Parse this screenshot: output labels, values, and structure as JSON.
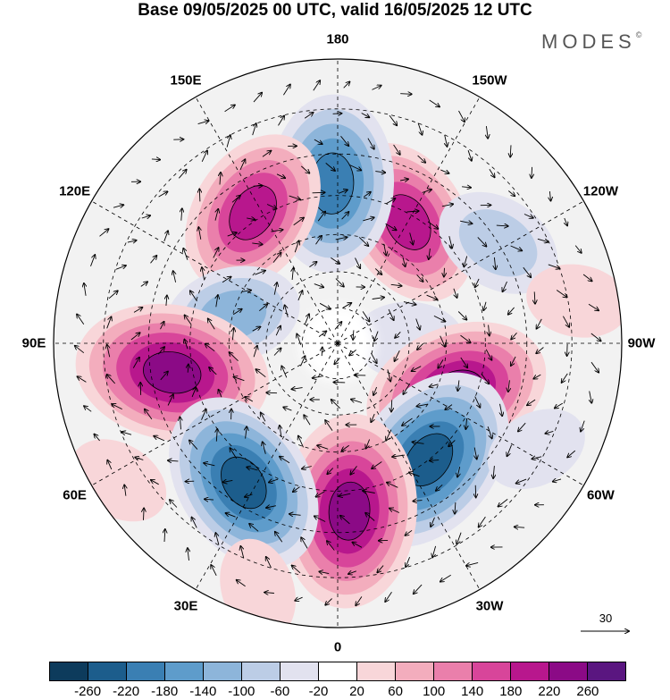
{
  "title": "Base 09/05/2025 00 UTC, valid 16/05/2025 12 UTC",
  "logo": "MODES",
  "logo_mark": "©",
  "longitude_labels": [
    {
      "text": "180",
      "lon": 180
    },
    {
      "text": "150E",
      "lon": 150
    },
    {
      "text": "120E",
      "lon": 120
    },
    {
      "text": "90E",
      "lon": 90
    },
    {
      "text": "60E",
      "lon": 60
    },
    {
      "text": "30E",
      "lon": 30
    },
    {
      "text": "0",
      "lon": 0
    },
    {
      "text": "30W",
      "lon": -30
    },
    {
      "text": "60W",
      "lon": -60
    },
    {
      "text": "90W",
      "lon": -90
    },
    {
      "text": "120W",
      "lon": -120
    },
    {
      "text": "150W",
      "lon": -150
    }
  ],
  "reference_vector": "30",
  "colorbar": {
    "colors": [
      "#0d3b5c",
      "#1c5d8c",
      "#3a7fb3",
      "#5e9ccb",
      "#8db5da",
      "#bccde6",
      "#e2e2ef",
      "#ffffff",
      "#f8d6d9",
      "#f3adbd",
      "#ea7fab",
      "#d8459a",
      "#b8178d",
      "#8b0a86",
      "#5a1680"
    ],
    "ticks": [
      "-260",
      "-220",
      "-180",
      "-140",
      "-100",
      "-60",
      "-20",
      "20",
      "60",
      "100",
      "140",
      "180",
      "220",
      "260"
    ]
  },
  "anomalies": [
    {
      "lon": -150,
      "lat": 52,
      "value": 200
    },
    {
      "lon": 178,
      "lat": 47,
      "value": -220
    },
    {
      "lon": 147,
      "lat": 48,
      "value": 200
    },
    {
      "lon": -122,
      "lat": 40,
      "value": -100
    },
    {
      "lon": 105,
      "lat": 60,
      "value": -120
    },
    {
      "lon": -92,
      "lat": 70,
      "value": -60
    },
    {
      "lon": -68,
      "lat": 55,
      "value": 240
    },
    {
      "lon": 80,
      "lat": 45,
      "value": 260
    },
    {
      "lon": -38,
      "lat": 50,
      "value": -260
    },
    {
      "lon": -4,
      "lat": 45,
      "value": 260
    },
    {
      "lon": 34,
      "lat": 45,
      "value": -240
    },
    {
      "lon": -62,
      "lat": 32,
      "value": -40
    },
    {
      "lon": 58,
      "lat": 25,
      "value": 40
    },
    {
      "lon": 18,
      "lat": 25,
      "value": 40
    },
    {
      "lon": -100,
      "lat": 28,
      "value": 40
    }
  ]
}
